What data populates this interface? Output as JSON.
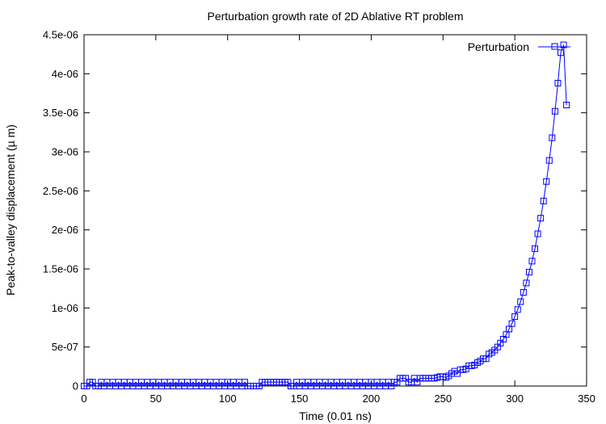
{
  "chart_data": {
    "type": "line",
    "title": "Perturbation growth rate of 2D Ablative RT problem",
    "xlabel": "Time (0.01 ns)",
    "ylabel": "Peak-to-valley displacement (µ m)",
    "xlim": [
      0,
      350
    ],
    "ylim": [
      0,
      4.5e-06
    ],
    "x_ticks": [
      0,
      50,
      100,
      150,
      200,
      250,
      300,
      350
    ],
    "x_tick_labels": [
      "0",
      "50",
      "100",
      "150",
      "200",
      "250",
      "300",
      "350"
    ],
    "y_ticks": [
      0,
      5e-07,
      1e-06,
      1.5e-06,
      2e-06,
      2.5e-06,
      3e-06,
      3.5e-06,
      4e-06,
      4.5e-06
    ],
    "y_tick_labels": [
      "0",
      "5e-07",
      "1e-06",
      "1.5e-06",
      "2e-06",
      "2.5e-06",
      "3e-06",
      "3.5e-06",
      "4e-06",
      "4.5e-06"
    ],
    "grid": false,
    "legend_position": "top-right",
    "series": [
      {
        "name": "Perturbation",
        "color": "#0000ff",
        "marker": "square",
        "points": [
          [
            0,
            0
          ],
          [
            2,
            0
          ],
          [
            4,
            5e-08
          ],
          [
            6,
            5e-08
          ],
          [
            8,
            0
          ],
          [
            10,
            0
          ],
          [
            12,
            5e-08
          ],
          [
            14,
            0
          ],
          [
            16,
            5e-08
          ],
          [
            18,
            0
          ],
          [
            20,
            5e-08
          ],
          [
            22,
            0
          ],
          [
            24,
            5e-08
          ],
          [
            26,
            0
          ],
          [
            28,
            5e-08
          ],
          [
            30,
            0
          ],
          [
            32,
            5e-08
          ],
          [
            34,
            0
          ],
          [
            36,
            5e-08
          ],
          [
            38,
            0
          ],
          [
            40,
            5e-08
          ],
          [
            42,
            0
          ],
          [
            44,
            5e-08
          ],
          [
            46,
            0
          ],
          [
            48,
            5e-08
          ],
          [
            50,
            0
          ],
          [
            52,
            5e-08
          ],
          [
            54,
            0
          ],
          [
            56,
            5e-08
          ],
          [
            58,
            0
          ],
          [
            60,
            5e-08
          ],
          [
            62,
            0
          ],
          [
            64,
            5e-08
          ],
          [
            66,
            0
          ],
          [
            68,
            5e-08
          ],
          [
            70,
            0
          ],
          [
            72,
            5e-08
          ],
          [
            74,
            0
          ],
          [
            76,
            5e-08
          ],
          [
            78,
            0
          ],
          [
            80,
            5e-08
          ],
          [
            82,
            0
          ],
          [
            84,
            5e-08
          ],
          [
            86,
            0
          ],
          [
            88,
            5e-08
          ],
          [
            90,
            0
          ],
          [
            92,
            5e-08
          ],
          [
            94,
            0
          ],
          [
            96,
            5e-08
          ],
          [
            98,
            0
          ],
          [
            100,
            5e-08
          ],
          [
            102,
            0
          ],
          [
            104,
            5e-08
          ],
          [
            106,
            0
          ],
          [
            108,
            5e-08
          ],
          [
            110,
            0
          ],
          [
            112,
            5e-08
          ],
          [
            114,
            0
          ],
          [
            116,
            0
          ],
          [
            118,
            0
          ],
          [
            120,
            0
          ],
          [
            122,
            0
          ],
          [
            124,
            5e-08
          ],
          [
            126,
            5e-08
          ],
          [
            128,
            5e-08
          ],
          [
            130,
            5e-08
          ],
          [
            132,
            5e-08
          ],
          [
            134,
            5e-08
          ],
          [
            136,
            5e-08
          ],
          [
            138,
            5e-08
          ],
          [
            140,
            5e-08
          ],
          [
            142,
            5e-08
          ],
          [
            144,
            0
          ],
          [
            146,
            0
          ],
          [
            148,
            5e-08
          ],
          [
            150,
            0
          ],
          [
            152,
            5e-08
          ],
          [
            154,
            0
          ],
          [
            156,
            5e-08
          ],
          [
            158,
            0
          ],
          [
            160,
            5e-08
          ],
          [
            162,
            0
          ],
          [
            164,
            5e-08
          ],
          [
            166,
            0
          ],
          [
            168,
            5e-08
          ],
          [
            170,
            0
          ],
          [
            172,
            5e-08
          ],
          [
            174,
            0
          ],
          [
            176,
            5e-08
          ],
          [
            178,
            0
          ],
          [
            180,
            5e-08
          ],
          [
            182,
            0
          ],
          [
            184,
            5e-08
          ],
          [
            186,
            0
          ],
          [
            188,
            5e-08
          ],
          [
            190,
            0
          ],
          [
            192,
            5e-08
          ],
          [
            194,
            0
          ],
          [
            196,
            5e-08
          ],
          [
            198,
            0
          ],
          [
            200,
            5e-08
          ],
          [
            202,
            0
          ],
          [
            204,
            5e-08
          ],
          [
            206,
            0
          ],
          [
            208,
            5e-08
          ],
          [
            210,
            0
          ],
          [
            212,
            5e-08
          ],
          [
            214,
            0
          ],
          [
            216,
            5e-08
          ],
          [
            218,
            5e-08
          ],
          [
            220,
            1e-07
          ],
          [
            222,
            1e-07
          ],
          [
            224,
            1e-07
          ],
          [
            226,
            5e-08
          ],
          [
            228,
            5e-08
          ],
          [
            230,
            1e-07
          ],
          [
            232,
            5e-08
          ],
          [
            234,
            1e-07
          ],
          [
            236,
            1e-07
          ],
          [
            238,
            1e-07
          ],
          [
            240,
            1e-07
          ],
          [
            242,
            1e-07
          ],
          [
            244,
            1e-07
          ],
          [
            246,
            1.1e-07
          ],
          [
            248,
            1.2e-07
          ],
          [
            250,
            1.2e-07
          ],
          [
            252,
            1.1e-07
          ],
          [
            254,
            1.3e-07
          ],
          [
            256,
            1.6e-07
          ],
          [
            258,
            1.9e-07
          ],
          [
            260,
            1.6e-07
          ],
          [
            262,
            2.1e-07
          ],
          [
            264,
            2.1e-07
          ],
          [
            266,
            2.2e-07
          ],
          [
            268,
            2.6e-07
          ],
          [
            270,
            2.6e-07
          ],
          [
            272,
            2.7e-07
          ],
          [
            274,
            3e-07
          ],
          [
            276,
            3.2e-07
          ],
          [
            278,
            3.5e-07
          ],
          [
            280,
            3.5e-07
          ],
          [
            282,
            4.1e-07
          ],
          [
            284,
            4.3e-07
          ],
          [
            286,
            4.6e-07
          ],
          [
            288,
            5e-07
          ],
          [
            290,
            5.5e-07
          ],
          [
            292,
            6e-07
          ],
          [
            294,
            6.6e-07
          ],
          [
            296,
            7.3e-07
          ],
          [
            298,
            8e-07
          ],
          [
            300,
            8.9e-07
          ],
          [
            302,
            9.8e-07
          ],
          [
            304,
            1.08e-06
          ],
          [
            306,
            1.2e-06
          ],
          [
            308,
            1.32e-06
          ],
          [
            310,
            1.46e-06
          ],
          [
            312,
            1.6e-06
          ],
          [
            314,
            1.76e-06
          ],
          [
            316,
            1.95e-06
          ],
          [
            318,
            2.15e-06
          ],
          [
            320,
            2.37e-06
          ],
          [
            322,
            2.62e-06
          ],
          [
            324,
            2.89e-06
          ],
          [
            326,
            3.18e-06
          ],
          [
            328,
            3.52e-06
          ],
          [
            330,
            3.88e-06
          ],
          [
            332,
            4.27e-06
          ],
          [
            334,
            4.37e-06
          ],
          [
            336,
            3.6e-06
          ]
        ]
      }
    ]
  }
}
